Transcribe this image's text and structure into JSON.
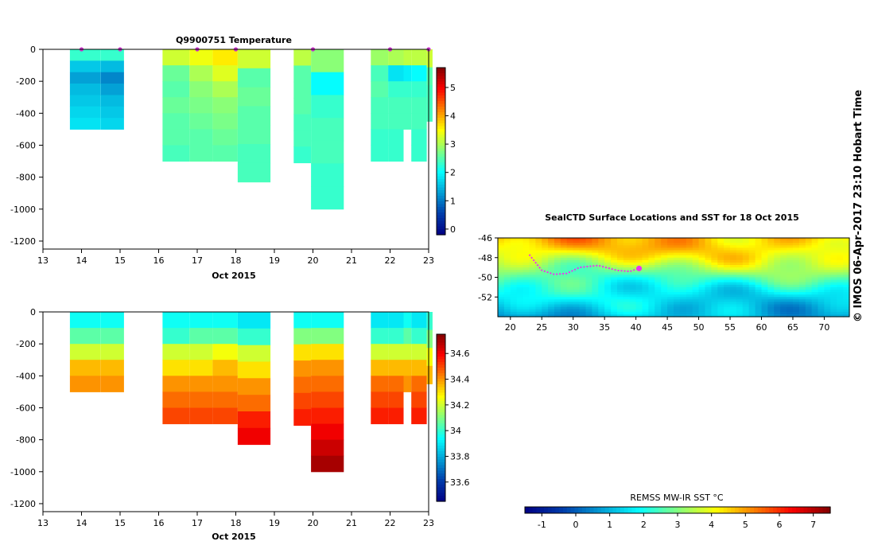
{
  "credit": "© IMOS 06-Apr-2017 23:10 Hobart Time",
  "chart_data": [
    {
      "type": "heatmap",
      "title": "Q9900751  Temperature",
      "xlabel": "Oct 2015",
      "ylabel": "",
      "xlim": [
        13,
        23
      ],
      "ylim": [
        -1250,
        0
      ],
      "x_ticks": [
        13,
        14,
        15,
        16,
        17,
        18,
        19,
        20,
        21,
        22,
        23
      ],
      "y_ticks": [
        0,
        -200,
        -400,
        -600,
        -800,
        -1000,
        -1200
      ],
      "colorbar": {
        "min": -0.2,
        "max": 5.7,
        "ticks": [
          0,
          1,
          2,
          3,
          4,
          5
        ]
      },
      "surface_markers": [
        14,
        15,
        17,
        18,
        20,
        22,
        23
      ],
      "profiles": [
        {
          "x0": 13.7,
          "x1": 14.5,
          "bottom": -500,
          "values": [
            2.3,
            1.6,
            1.3,
            1.5,
            1.6,
            1.7,
            1.8
          ]
        },
        {
          "x0": 14.5,
          "x1": 15.1,
          "bottom": -500,
          "values": [
            2.3,
            1.5,
            1.1,
            1.3,
            1.5,
            1.6,
            1.7
          ]
        },
        {
          "x0": 16.1,
          "x1": 16.8,
          "bottom": -700,
          "values": [
            3.2,
            2.6,
            2.5,
            2.6,
            2.5,
            2.5,
            2.4
          ]
        },
        {
          "x0": 16.8,
          "x1": 17.4,
          "bottom": -700,
          "values": [
            3.4,
            3.0,
            2.8,
            2.7,
            2.6,
            2.5,
            2.5
          ]
        },
        {
          "x0": 17.4,
          "x1": 18.05,
          "bottom": -700,
          "values": [
            3.6,
            3.3,
            3.0,
            2.8,
            2.7,
            2.6,
            2.5
          ]
        },
        {
          "x0": 18.05,
          "x1": 18.9,
          "bottom": -830,
          "values": [
            3.2,
            2.5,
            2.6,
            2.5,
            2.5,
            2.4,
            2.4
          ]
        },
        {
          "x0": 19.5,
          "x1": 19.95,
          "bottom": -710,
          "values": [
            3.1,
            2.5,
            2.5,
            2.5,
            2.4,
            2.4,
            2.3
          ]
        },
        {
          "x0": 19.95,
          "x1": 20.8,
          "bottom": -1000,
          "values": [
            2.8,
            2.0,
            2.3,
            2.4,
            2.4,
            2.3,
            2.3
          ]
        },
        {
          "x0": 21.5,
          "x1": 21.95,
          "bottom": -700,
          "values": [
            2.9,
            2.4,
            2.5,
            2.4,
            2.4,
            2.3,
            2.3
          ]
        },
        {
          "x0": 21.95,
          "x1": 22.35,
          "bottom": -700,
          "values": [
            3.0,
            1.8,
            2.3,
            2.4,
            2.4,
            2.3,
            2.3
          ]
        },
        {
          "x0": 22.35,
          "x1": 22.55,
          "bottom": -500,
          "values": [
            3.1,
            1.9,
            2.3,
            2.4,
            2.4
          ]
        },
        {
          "x0": 22.55,
          "x1": 22.95,
          "bottom": -700,
          "values": [
            3.1,
            2.0,
            2.3,
            2.4,
            2.4,
            2.3,
            2.3
          ]
        },
        {
          "x0": 22.95,
          "x1": 23.1,
          "bottom": -450,
          "values": [
            3.2,
            2.5,
            2.4,
            2.4
          ]
        }
      ]
    },
    {
      "type": "heatmap",
      "title": "",
      "xlabel": "Oct 2015",
      "ylabel": "",
      "xlim": [
        13,
        23
      ],
      "ylim": [
        -1250,
        0
      ],
      "x_ticks": [
        13,
        14,
        15,
        16,
        17,
        18,
        19,
        20,
        21,
        22,
        23
      ],
      "y_ticks": [
        0,
        -200,
        -400,
        -600,
        -800,
        -1000,
        -1200
      ],
      "colorbar": {
        "min": 33.45,
        "max": 34.75,
        "ticks": [
          33.6,
          33.8,
          34,
          34.2,
          34.4,
          34.6
        ]
      },
      "profiles": [
        {
          "x0": 13.7,
          "x1": 14.5,
          "bottom": -500,
          "values": [
            33.95,
            34.05,
            34.2,
            34.35,
            34.4
          ]
        },
        {
          "x0": 14.5,
          "x1": 15.1,
          "bottom": -500,
          "values": [
            33.95,
            34.05,
            34.2,
            34.35,
            34.4
          ]
        },
        {
          "x0": 16.1,
          "x1": 16.8,
          "bottom": -700,
          "values": [
            33.95,
            34.0,
            34.2,
            34.3,
            34.4,
            34.45,
            34.5
          ]
        },
        {
          "x0": 16.8,
          "x1": 17.4,
          "bottom": -700,
          "values": [
            33.95,
            34.05,
            34.2,
            34.3,
            34.4,
            34.45,
            34.5
          ]
        },
        {
          "x0": 17.4,
          "x1": 18.05,
          "bottom": -700,
          "values": [
            33.95,
            34.05,
            34.25,
            34.35,
            34.4,
            34.45,
            34.5
          ]
        },
        {
          "x0": 18.05,
          "x1": 18.9,
          "bottom": -830,
          "values": [
            33.9,
            34.0,
            34.2,
            34.3,
            34.4,
            34.45,
            34.55,
            34.6
          ]
        },
        {
          "x0": 19.5,
          "x1": 19.95,
          "bottom": -710,
          "values": [
            33.95,
            34.1,
            34.3,
            34.4,
            34.45,
            34.5,
            34.55
          ]
        },
        {
          "x0": 19.95,
          "x1": 20.8,
          "bottom": -1000,
          "values": [
            33.95,
            34.1,
            34.3,
            34.4,
            34.45,
            34.5,
            34.55,
            34.6,
            34.65,
            34.7
          ]
        },
        {
          "x0": 21.5,
          "x1": 21.95,
          "bottom": -700,
          "values": [
            33.9,
            34.0,
            34.2,
            34.35,
            34.45,
            34.5,
            34.55
          ]
        },
        {
          "x0": 21.95,
          "x1": 22.35,
          "bottom": -700,
          "values": [
            33.9,
            34.0,
            34.2,
            34.35,
            34.45,
            34.5,
            34.55
          ]
        },
        {
          "x0": 22.35,
          "x1": 22.55,
          "bottom": -500,
          "values": [
            33.95,
            34.05,
            34.2,
            34.35,
            34.4
          ]
        },
        {
          "x0": 22.55,
          "x1": 22.95,
          "bottom": -700,
          "values": [
            33.9,
            34.0,
            34.2,
            34.35,
            34.45,
            34.5,
            34.55
          ]
        },
        {
          "x0": 22.95,
          "x1": 23.1,
          "bottom": -450,
          "values": [
            34.0,
            34.1,
            34.25,
            34.35
          ]
        }
      ]
    },
    {
      "type": "heatmap",
      "title": "SealCTD Surface Locations and SST for 18 Oct 2015",
      "xlabel": "",
      "ylabel": "",
      "xlim": [
        18,
        74
      ],
      "ylim": [
        -54,
        -46
      ],
      "x_ticks": [
        20,
        25,
        30,
        35,
        40,
        45,
        50,
        55,
        60,
        65,
        70
      ],
      "y_ticks": [
        -46,
        -48,
        -50,
        -52
      ],
      "sst_profile": [
        {
          "lat": -46,
          "sst": 4.8
        },
        {
          "lat": -47,
          "sst": 4.5
        },
        {
          "lat": -48,
          "sst": 4.0
        },
        {
          "lat": -49,
          "sst": 3.3
        },
        {
          "lat": -50,
          "sst": 2.6
        },
        {
          "lat": -51,
          "sst": 2.0
        },
        {
          "lat": -52,
          "sst": 1.6
        },
        {
          "lat": -53,
          "sst": 1.2
        },
        {
          "lat": -54,
          "sst": 0.9
        }
      ],
      "seal_track": [
        {
          "lon": 23,
          "lat": -47.7
        },
        {
          "lon": 24,
          "lat": -48.5
        },
        {
          "lon": 25,
          "lat": -49.3
        },
        {
          "lon": 27,
          "lat": -49.7
        },
        {
          "lon": 29,
          "lat": -49.6
        },
        {
          "lon": 31,
          "lat": -49.0
        },
        {
          "lon": 34,
          "lat": -48.8
        },
        {
          "lon": 37,
          "lat": -49.3
        },
        {
          "lon": 39,
          "lat": -49.4
        },
        {
          "lon": 40.5,
          "lat": -49.1
        }
      ],
      "colorbar": {
        "label": "REMSS MW-IR SST °C",
        "min": -1.5,
        "max": 7.5,
        "ticks": [
          -1,
          0,
          1,
          2,
          3,
          4,
          5,
          6,
          7
        ]
      }
    }
  ]
}
